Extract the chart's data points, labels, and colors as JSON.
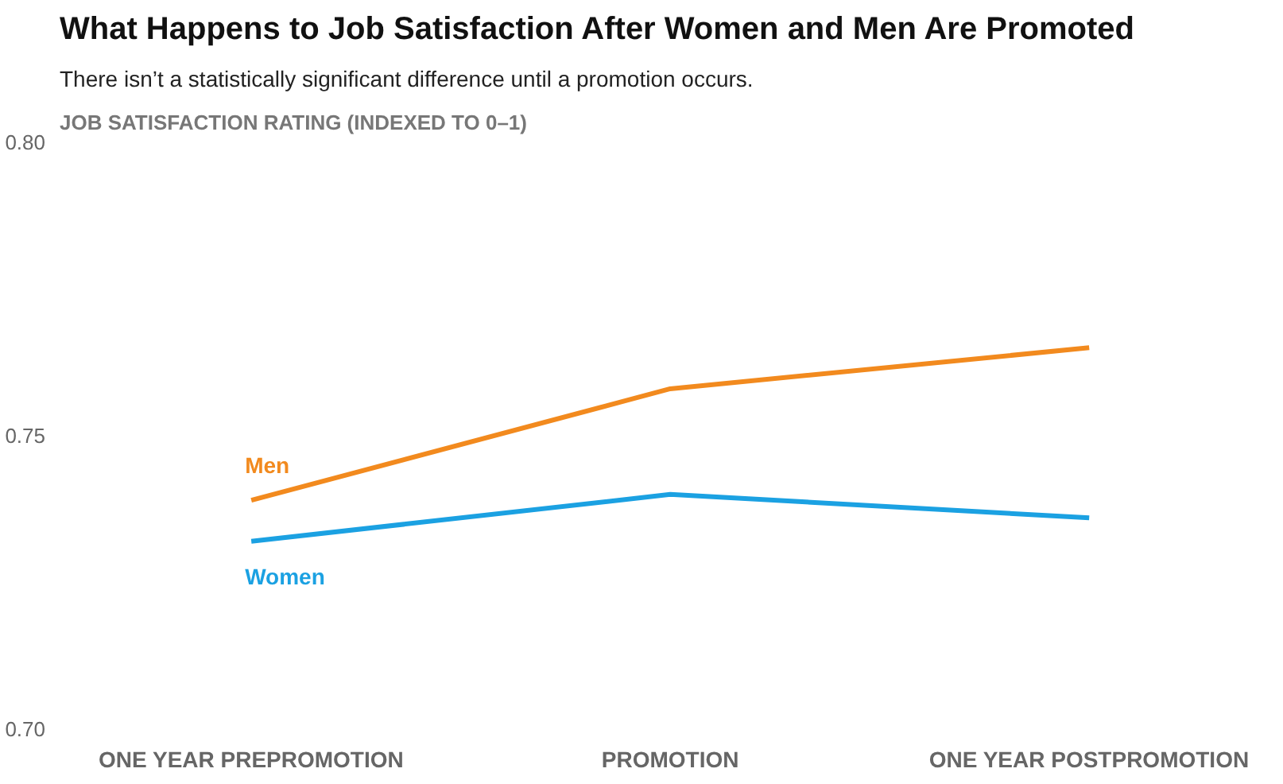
{
  "chart_data": {
    "type": "line",
    "title": "What Happens to Job Satisfaction After Women and Men Are Promoted",
    "subtitle": "There isn’t a statistically significant difference until a promotion occurs.",
    "ylabel": "JOB SATISFACTION RATING (INDEXED TO 0–1)",
    "categories": [
      "ONE YEAR PREPROMOTION",
      "PROMOTION",
      "ONE YEAR POSTPROMOTION"
    ],
    "series": [
      {
        "name": "Men",
        "color": "#f28a1e",
        "values": [
          0.739,
          0.758,
          0.765
        ]
      },
      {
        "name": "Women",
        "color": "#1ba1e2",
        "values": [
          0.732,
          0.74,
          0.736
        ]
      }
    ],
    "ylim": [
      0.7,
      0.8
    ],
    "yticks": [
      {
        "value": 0.7,
        "label": "0.70"
      },
      {
        "value": 0.75,
        "label": "0.75"
      },
      {
        "value": 0.8,
        "label": "0.80"
      }
    ],
    "grid": false,
    "legend": false,
    "marker": "none",
    "line_style": "solid"
  }
}
